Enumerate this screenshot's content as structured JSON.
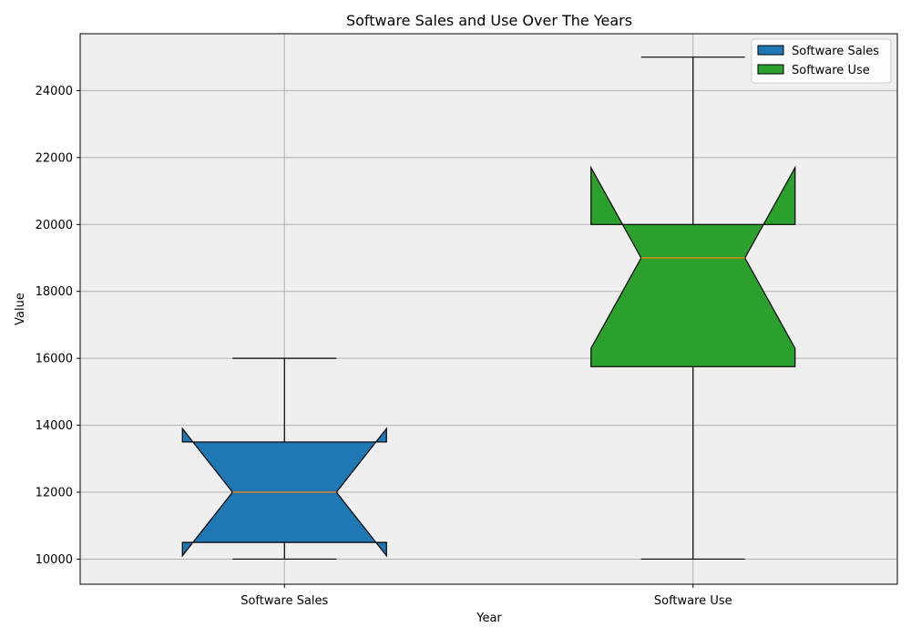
{
  "chart_data": {
    "type": "boxplot",
    "title": "Software Sales and Use Over The Years",
    "xlabel": "Year",
    "ylabel": "Value",
    "categories": [
      "Software Sales",
      "Software Use"
    ],
    "ylim": [
      9250,
      25700
    ],
    "yticks": [
      10000,
      12000,
      14000,
      16000,
      18000,
      20000,
      22000,
      24000
    ],
    "grid": true,
    "notched": true,
    "legend_position": "top-right",
    "background_color": "#efefef",
    "median_color": "#ff7f0e",
    "series": [
      {
        "name": "Software Sales",
        "color": "#1f77b4",
        "whisker_low": 10000,
        "q1": 10500,
        "median": 12000,
        "q3": 13500,
        "whisker_high": 16000,
        "notch_low": 10100,
        "notch_high": 13900
      },
      {
        "name": "Software Use",
        "color": "#2ca02c",
        "whisker_low": 10000,
        "q1": 15750,
        "median": 19000,
        "q3": 20000,
        "whisker_high": 25000,
        "notch_low": 16300,
        "notch_high": 21700
      }
    ]
  }
}
